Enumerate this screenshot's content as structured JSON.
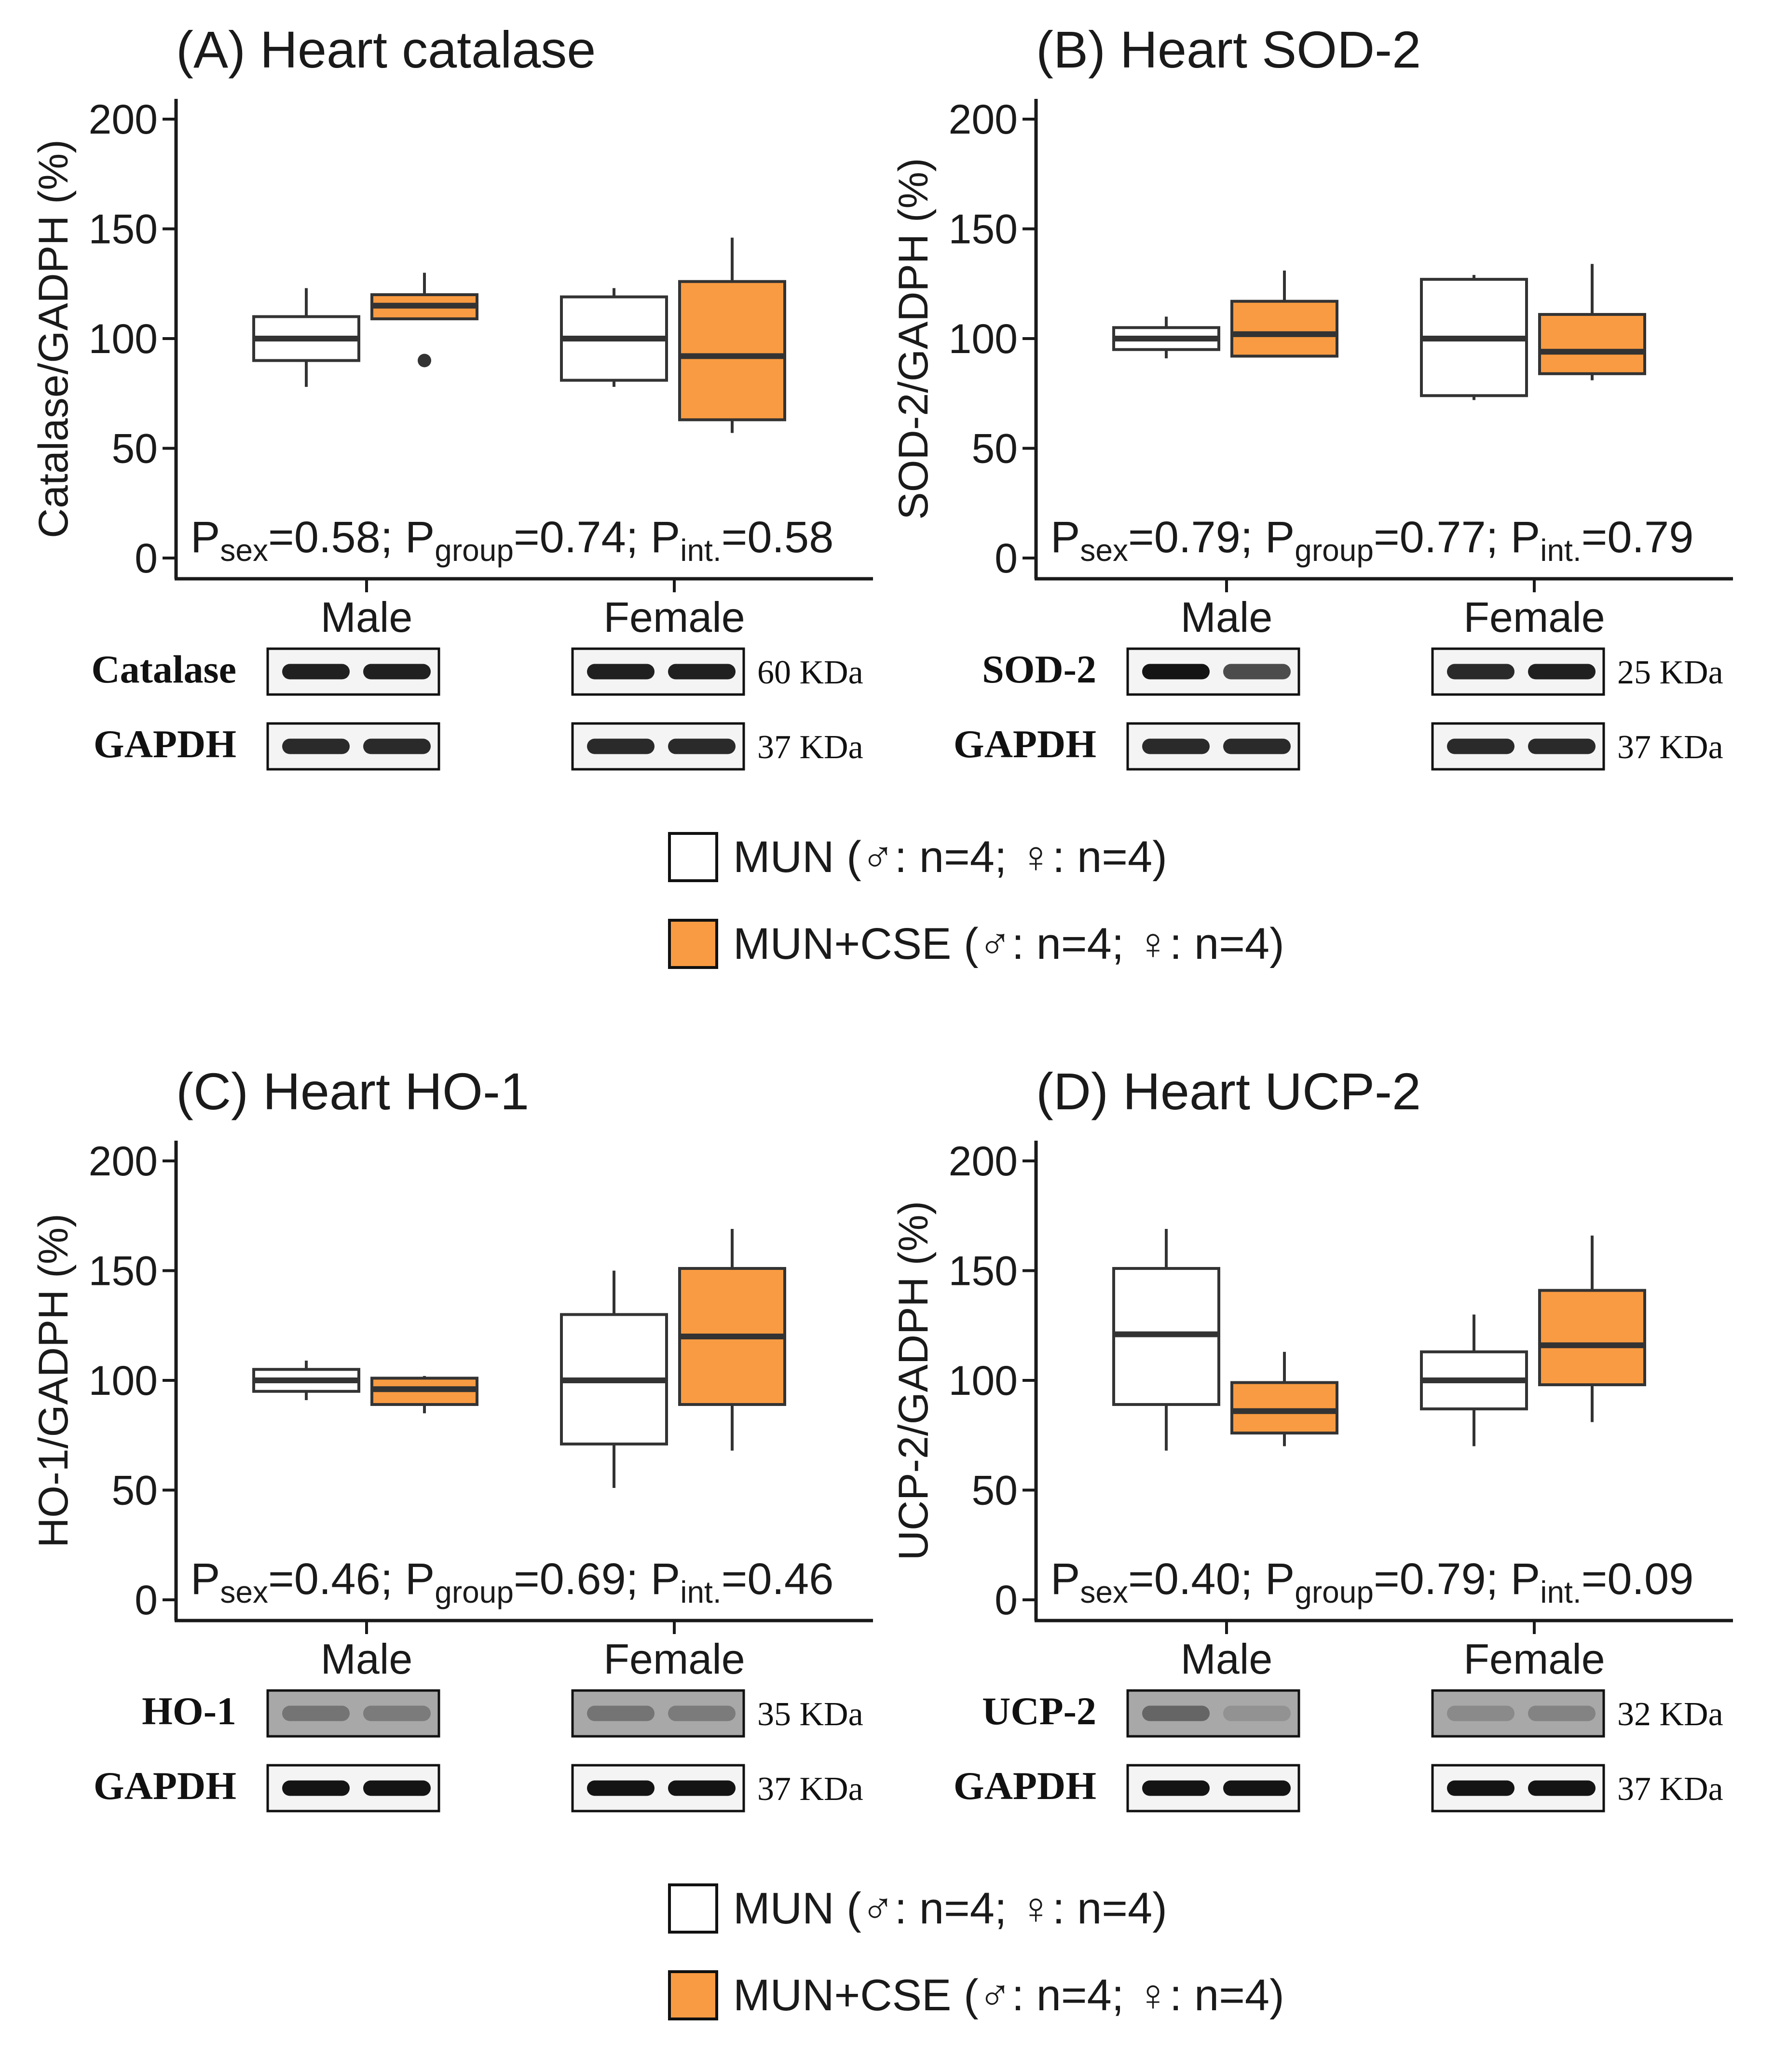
{
  "colors": {
    "mun": "#ffffff",
    "mun_cse": "#f99b42",
    "stroke": "#333333",
    "axis": "#1a1a1a",
    "band": "#141414"
  },
  "x_categories": [
    "Male",
    "Female"
  ],
  "legend_top": [
    {
      "label": "MUN (♂: n=4; ♀: n=4)",
      "color": "#ffffff"
    },
    {
      "label": "MUN+CSE (♂: n=4; ♀: n=4)",
      "color": "#f99b42"
    }
  ],
  "legend_bottom": [
    {
      "label": "MUN (♂: n=4; ♀: n=4)",
      "color": "#ffffff"
    },
    {
      "label": "MUN+CSE (♂: n=4; ♀: n=4)",
      "color": "#f99b42"
    }
  ],
  "chart_data": [
    {
      "type": "box",
      "title": "(A) Heart catalase",
      "ylabel": "Catalase/GADPH (%)",
      "ylim": [
        0,
        200
      ],
      "yticks": [
        "0",
        "50",
        "100",
        "150",
        "200"
      ],
      "categories": [
        "Male",
        "Female"
      ],
      "pvalues": {
        "sex": "=0.58",
        "group": "=0.74",
        "int": "=0.58"
      },
      "series": [
        {
          "name": "MUN",
          "boxes": [
            {
              "min": 78,
              "q1": 90,
              "median": 100,
              "q3": 110,
              "max": 123,
              "outliers": []
            },
            {
              "min": 78,
              "q1": 81,
              "median": 100,
              "q3": 119,
              "max": 123,
              "outliers": []
            }
          ]
        },
        {
          "name": "MUN+CSE",
          "boxes": [
            {
              "min": 109,
              "q1": 109,
              "median": 115,
              "q3": 120,
              "max": 130,
              "outliers": [
                90
              ]
            },
            {
              "min": 57,
              "q1": 63,
              "median": 92,
              "q3": 126,
              "max": 146,
              "outliers": []
            }
          ]
        }
      ],
      "blots": {
        "target": "Catalase",
        "target_kda": "60 KDa",
        "control": "GAPDH",
        "control_kda": "37 KDa",
        "target_intensity": [
          [
            0.95,
            0.95
          ],
          [
            0.95,
            0.95
          ]
        ],
        "control_intensity": [
          [
            0.9,
            0.9
          ],
          [
            0.9,
            0.9
          ]
        ]
      }
    },
    {
      "type": "box",
      "title": "(B) Heart SOD-2",
      "ylabel": "SOD-2/GADPH (%)",
      "ylim": [
        0,
        200
      ],
      "yticks": [
        "0",
        "50",
        "100",
        "150",
        "200"
      ],
      "categories": [
        "Male",
        "Female"
      ],
      "pvalues": {
        "sex": "=0.79",
        "group": "=0.77",
        "int": "=0.79"
      },
      "series": [
        {
          "name": "MUN",
          "boxes": [
            {
              "min": 91,
              "q1": 95,
              "median": 100,
              "q3": 105,
              "max": 110,
              "outliers": []
            },
            {
              "min": 72,
              "q1": 74,
              "median": 100,
              "q3": 127,
              "max": 129,
              "outliers": []
            }
          ]
        },
        {
          "name": "MUN+CSE",
          "boxes": [
            {
              "min": 92,
              "q1": 92,
              "median": 102,
              "q3": 117,
              "max": 131,
              "outliers": []
            },
            {
              "min": 81,
              "q1": 84,
              "median": 94,
              "q3": 111,
              "max": 134,
              "outliers": []
            }
          ]
        }
      ],
      "blots": {
        "target": "SOD-2",
        "target_kda": "25 KDa",
        "control": "GAPDH",
        "control_kda": "37 KDa",
        "target_intensity": [
          [
            1.0,
            0.75
          ],
          [
            0.9,
            0.95
          ]
        ],
        "control_intensity": [
          [
            0.9,
            0.9
          ],
          [
            0.9,
            0.9
          ]
        ]
      }
    },
    {
      "type": "box",
      "title": "(C) Heart HO-1",
      "ylabel": "HO-1/GADPH (%)",
      "ylim": [
        0,
        200
      ],
      "yticks": [
        "0",
        "50",
        "100",
        "150",
        "200"
      ],
      "categories": [
        "Male",
        "Female"
      ],
      "pvalues": {
        "sex": "=0.46",
        "group": "=0.69",
        "int": "=0.46"
      },
      "series": [
        {
          "name": "MUN",
          "boxes": [
            {
              "min": 91,
              "q1": 95,
              "median": 100,
              "q3": 105,
              "max": 109,
              "outliers": []
            },
            {
              "min": 51,
              "q1": 71,
              "median": 100,
              "q3": 130,
              "max": 150,
              "outliers": []
            }
          ]
        },
        {
          "name": "MUN+CSE",
          "boxes": [
            {
              "min": 85,
              "q1": 89,
              "median": 96,
              "q3": 101,
              "max": 102,
              "outliers": []
            },
            {
              "min": 68,
              "q1": 89,
              "median": 120,
              "q3": 151,
              "max": 169,
              "outliers": []
            }
          ]
        }
      ],
      "blots": {
        "target": "HO-1",
        "target_kda": "35 KDa",
        "control": "GAPDH",
        "control_kda": "37 KDa",
        "target_intensity": [
          [
            0.35,
            0.3
          ],
          [
            0.35,
            0.3
          ]
        ],
        "control_intensity": [
          [
            1.0,
            1.0
          ],
          [
            1.0,
            1.0
          ]
        ]
      }
    },
    {
      "type": "box",
      "title": "(D) Heart UCP-2",
      "ylabel": "UCP-2/GADPH (%)",
      "ylim": [
        0,
        200
      ],
      "yticks": [
        "0",
        "50",
        "100",
        "150",
        "200"
      ],
      "categories": [
        "Male",
        "Female"
      ],
      "pvalues": {
        "sex": "=0.40",
        "group": "=0.79",
        "int": "=0.09"
      },
      "series": [
        {
          "name": "MUN",
          "boxes": [
            {
              "min": 68,
              "q1": 89,
              "median": 121,
              "q3": 151,
              "max": 169,
              "outliers": []
            },
            {
              "min": 70,
              "q1": 87,
              "median": 100,
              "q3": 113,
              "max": 130,
              "outliers": []
            }
          ]
        },
        {
          "name": "MUN+CSE",
          "boxes": [
            {
              "min": 70,
              "q1": 76,
              "median": 86,
              "q3": 99,
              "max": 113,
              "outliers": []
            },
            {
              "min": 81,
              "q1": 98,
              "median": 116,
              "q3": 141,
              "max": 166,
              "outliers": []
            }
          ]
        }
      ],
      "blots": {
        "target": "UCP-2",
        "target_kda": "32 KDa",
        "control": "GAPDH",
        "control_kda": "37 KDa",
        "target_intensity": [
          [
            0.45,
            0.15
          ],
          [
            0.2,
            0.25
          ]
        ],
        "control_intensity": [
          [
            1.0,
            1.0
          ],
          [
            1.0,
            1.0
          ]
        ]
      }
    }
  ]
}
